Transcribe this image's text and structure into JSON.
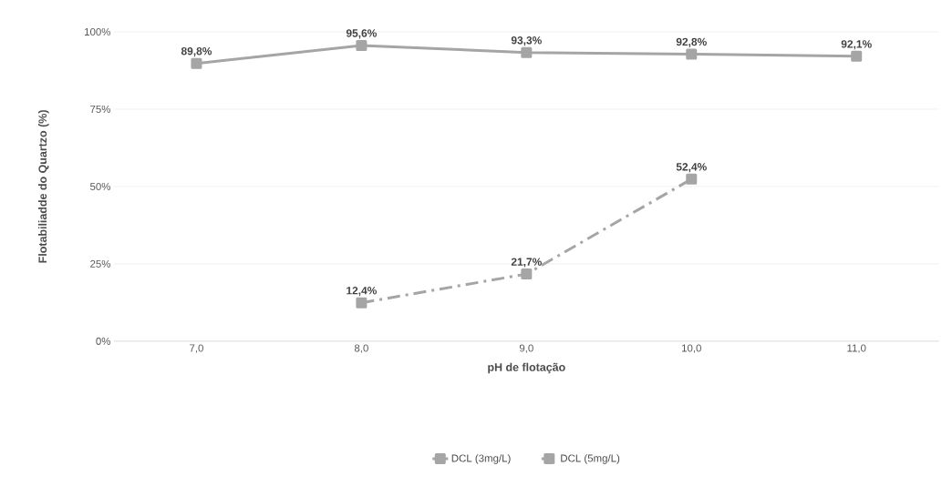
{
  "chart_data": {
    "type": "line",
    "xlabel": "pH de flotação",
    "ylabel": "Flotabiliadde do Quartzo (%)",
    "categories": [
      "7,0",
      "8,0",
      "9,0",
      "10,0",
      "11,0"
    ],
    "series": [
      {
        "name": "DCL (3mg/L)",
        "color": "#a5a5a5",
        "line_style": "solid",
        "values": [
          89.8,
          95.6,
          93.3,
          92.8,
          92.1
        ],
        "value_labels": [
          "89,8%",
          "95,6%",
          "93,3%",
          "92,8%",
          "92,1%"
        ]
      },
      {
        "name": "DCL (5mg/L)",
        "color": "#a5a5a5",
        "line_style": "dashed",
        "values": [
          null,
          12.4,
          21.7,
          52.4,
          null
        ],
        "value_labels": [
          null,
          "12,4%",
          "21,7%",
          "52,4%",
          null
        ]
      }
    ],
    "ylim": [
      0,
      100
    ],
    "yticks": [
      {
        "value": 0,
        "label": "0%"
      },
      {
        "value": 25,
        "label": "25%"
      },
      {
        "value": 50,
        "label": "50%"
      },
      {
        "value": 75,
        "label": "75%"
      },
      {
        "value": 100,
        "label": "100%"
      }
    ],
    "grid": "y",
    "legend": "bottom",
    "marker": "square"
  }
}
